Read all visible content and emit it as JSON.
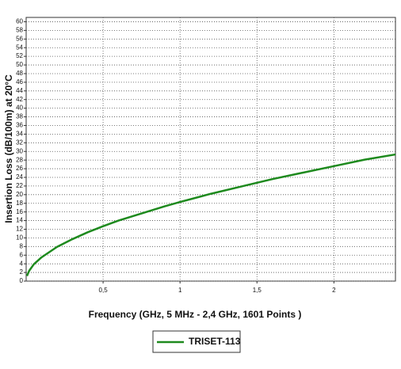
{
  "chart_data": {
    "type": "line",
    "xlabel": "Frequency (GHz, 5 MHz - 2,4 GHz, 1601 Points )",
    "ylabel": "Insertion Loss (dB/100m) at 20°C",
    "x": [
      0.005,
      0.02,
      0.05,
      0.1,
      0.2,
      0.3,
      0.4,
      0.5,
      0.6,
      0.7,
      0.8,
      0.9,
      1.0,
      1.2,
      1.4,
      1.6,
      1.8,
      2.0,
      2.2,
      2.4
    ],
    "series": [
      {
        "name": "TRISET-113",
        "color": "#1e8a1e",
        "values": [
          1.2,
          2.4,
          3.9,
          5.5,
          7.9,
          9.7,
          11.3,
          12.7,
          14.0,
          15.1,
          16.2,
          17.3,
          18.3,
          20.2,
          21.9,
          23.6,
          25.1,
          26.6,
          28.1,
          29.3
        ]
      }
    ],
    "xlim": [
      0,
      2.4
    ],
    "ylim": [
      0,
      61
    ],
    "xticks": [
      {
        "value": 0.5,
        "label": "0,5"
      },
      1,
      {
        "value": 1.5,
        "label": "1,5"
      },
      2
    ],
    "yticks": [
      0,
      2,
      4,
      6,
      8,
      10,
      12,
      14,
      16,
      18,
      20,
      22,
      24,
      26,
      28,
      30,
      32,
      34,
      36,
      38,
      40,
      42,
      44,
      46,
      48,
      50,
      52,
      54,
      56,
      58,
      60
    ],
    "grid": true,
    "legend": "bottom"
  }
}
